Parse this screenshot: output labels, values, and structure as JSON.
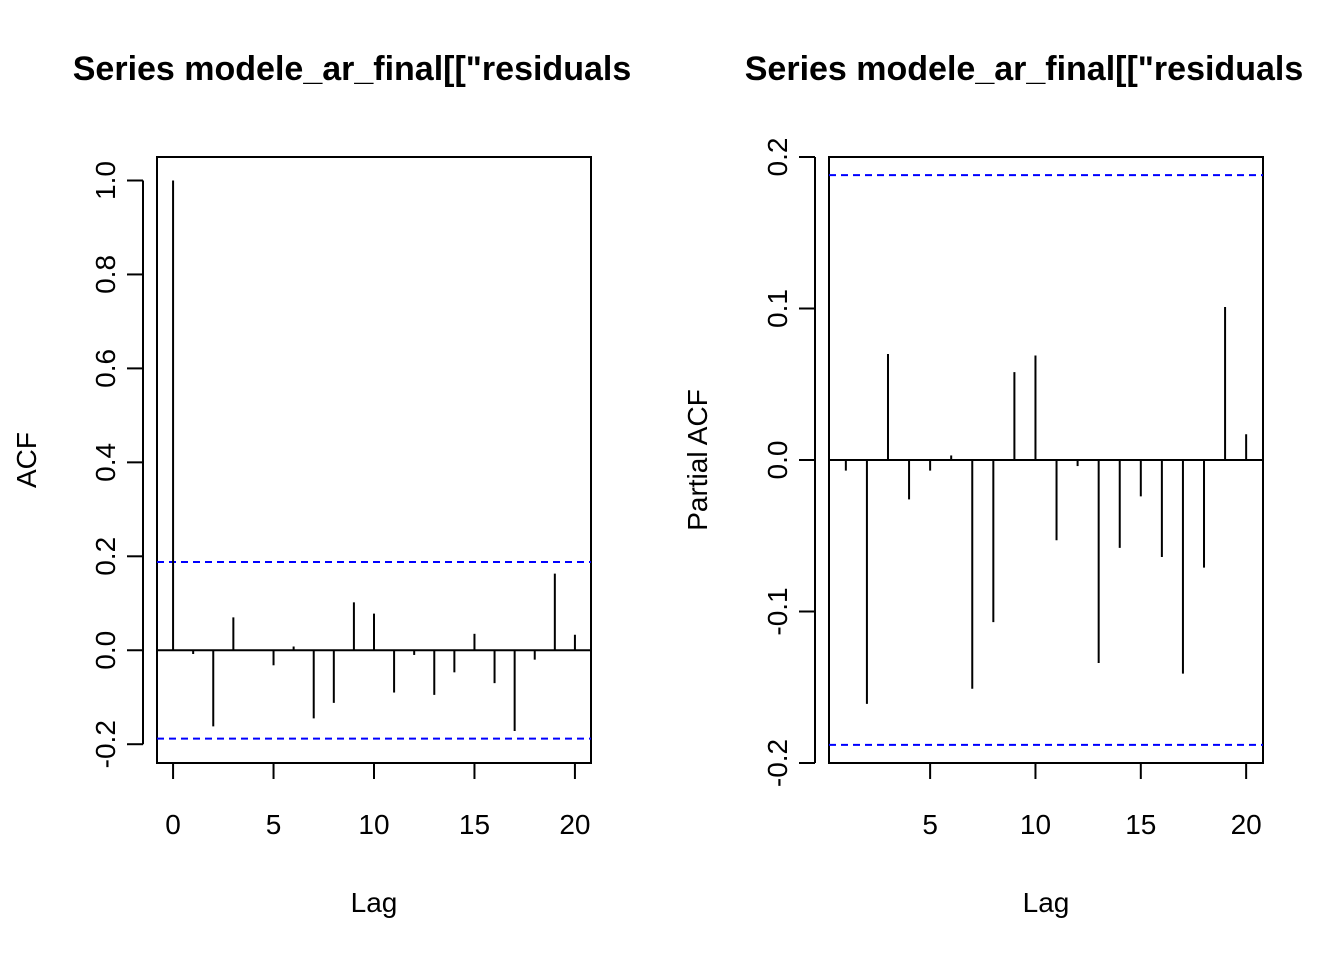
{
  "chart_data": [
    {
      "type": "bar",
      "title": "Series  modele_ar_final[[\"residuals",
      "xlabel": "Lag",
      "ylabel": "ACF",
      "xlim": [
        -0.8,
        20.8
      ],
      "ylim": [
        -0.24,
        1.05
      ],
      "xticks": [
        "0",
        "5",
        "10",
        "15",
        "20"
      ],
      "yticks": [
        "-0.2",
        "0.0",
        "0.2",
        "0.4",
        "0.6",
        "0.8",
        "1.0"
      ],
      "ci_bound": 0.188,
      "ci_color": "#0000ff",
      "x": [
        0,
        1,
        2,
        3,
        4,
        5,
        6,
        7,
        8,
        9,
        10,
        11,
        12,
        13,
        14,
        15,
        16,
        17,
        18,
        19,
        20
      ],
      "values": [
        1.0,
        -0.008,
        -0.162,
        0.07,
        0.0,
        -0.032,
        0.008,
        -0.145,
        -0.112,
        0.102,
        0.078,
        -0.09,
        -0.01,
        -0.095,
        -0.047,
        0.035,
        -0.07,
        -0.172,
        -0.02,
        0.163,
        0.033
      ]
    },
    {
      "type": "bar",
      "title": "Series  modele_ar_final[[\"residuals",
      "xlabel": "Lag",
      "ylabel": "Partial ACF",
      "xlim": [
        0.2,
        20.8
      ],
      "ylim": [
        -0.2,
        0.2
      ],
      "xticks": [
        "5",
        "10",
        "15",
        "20"
      ],
      "yticks": [
        "-0.2",
        "-0.1",
        "0.0",
        "0.1",
        "0.2"
      ],
      "ci_bound": 0.188,
      "ci_color": "#0000ff",
      "x": [
        1,
        2,
        3,
        4,
        5,
        6,
        7,
        8,
        9,
        10,
        11,
        12,
        13,
        14,
        15,
        16,
        17,
        18,
        19,
        20
      ],
      "values": [
        -0.007,
        -0.161,
        0.07,
        -0.026,
        -0.007,
        0.003,
        -0.151,
        -0.107,
        0.058,
        0.069,
        -0.053,
        -0.004,
        -0.134,
        -0.058,
        -0.024,
        -0.064,
        -0.141,
        -0.071,
        0.101,
        0.017
      ]
    }
  ]
}
